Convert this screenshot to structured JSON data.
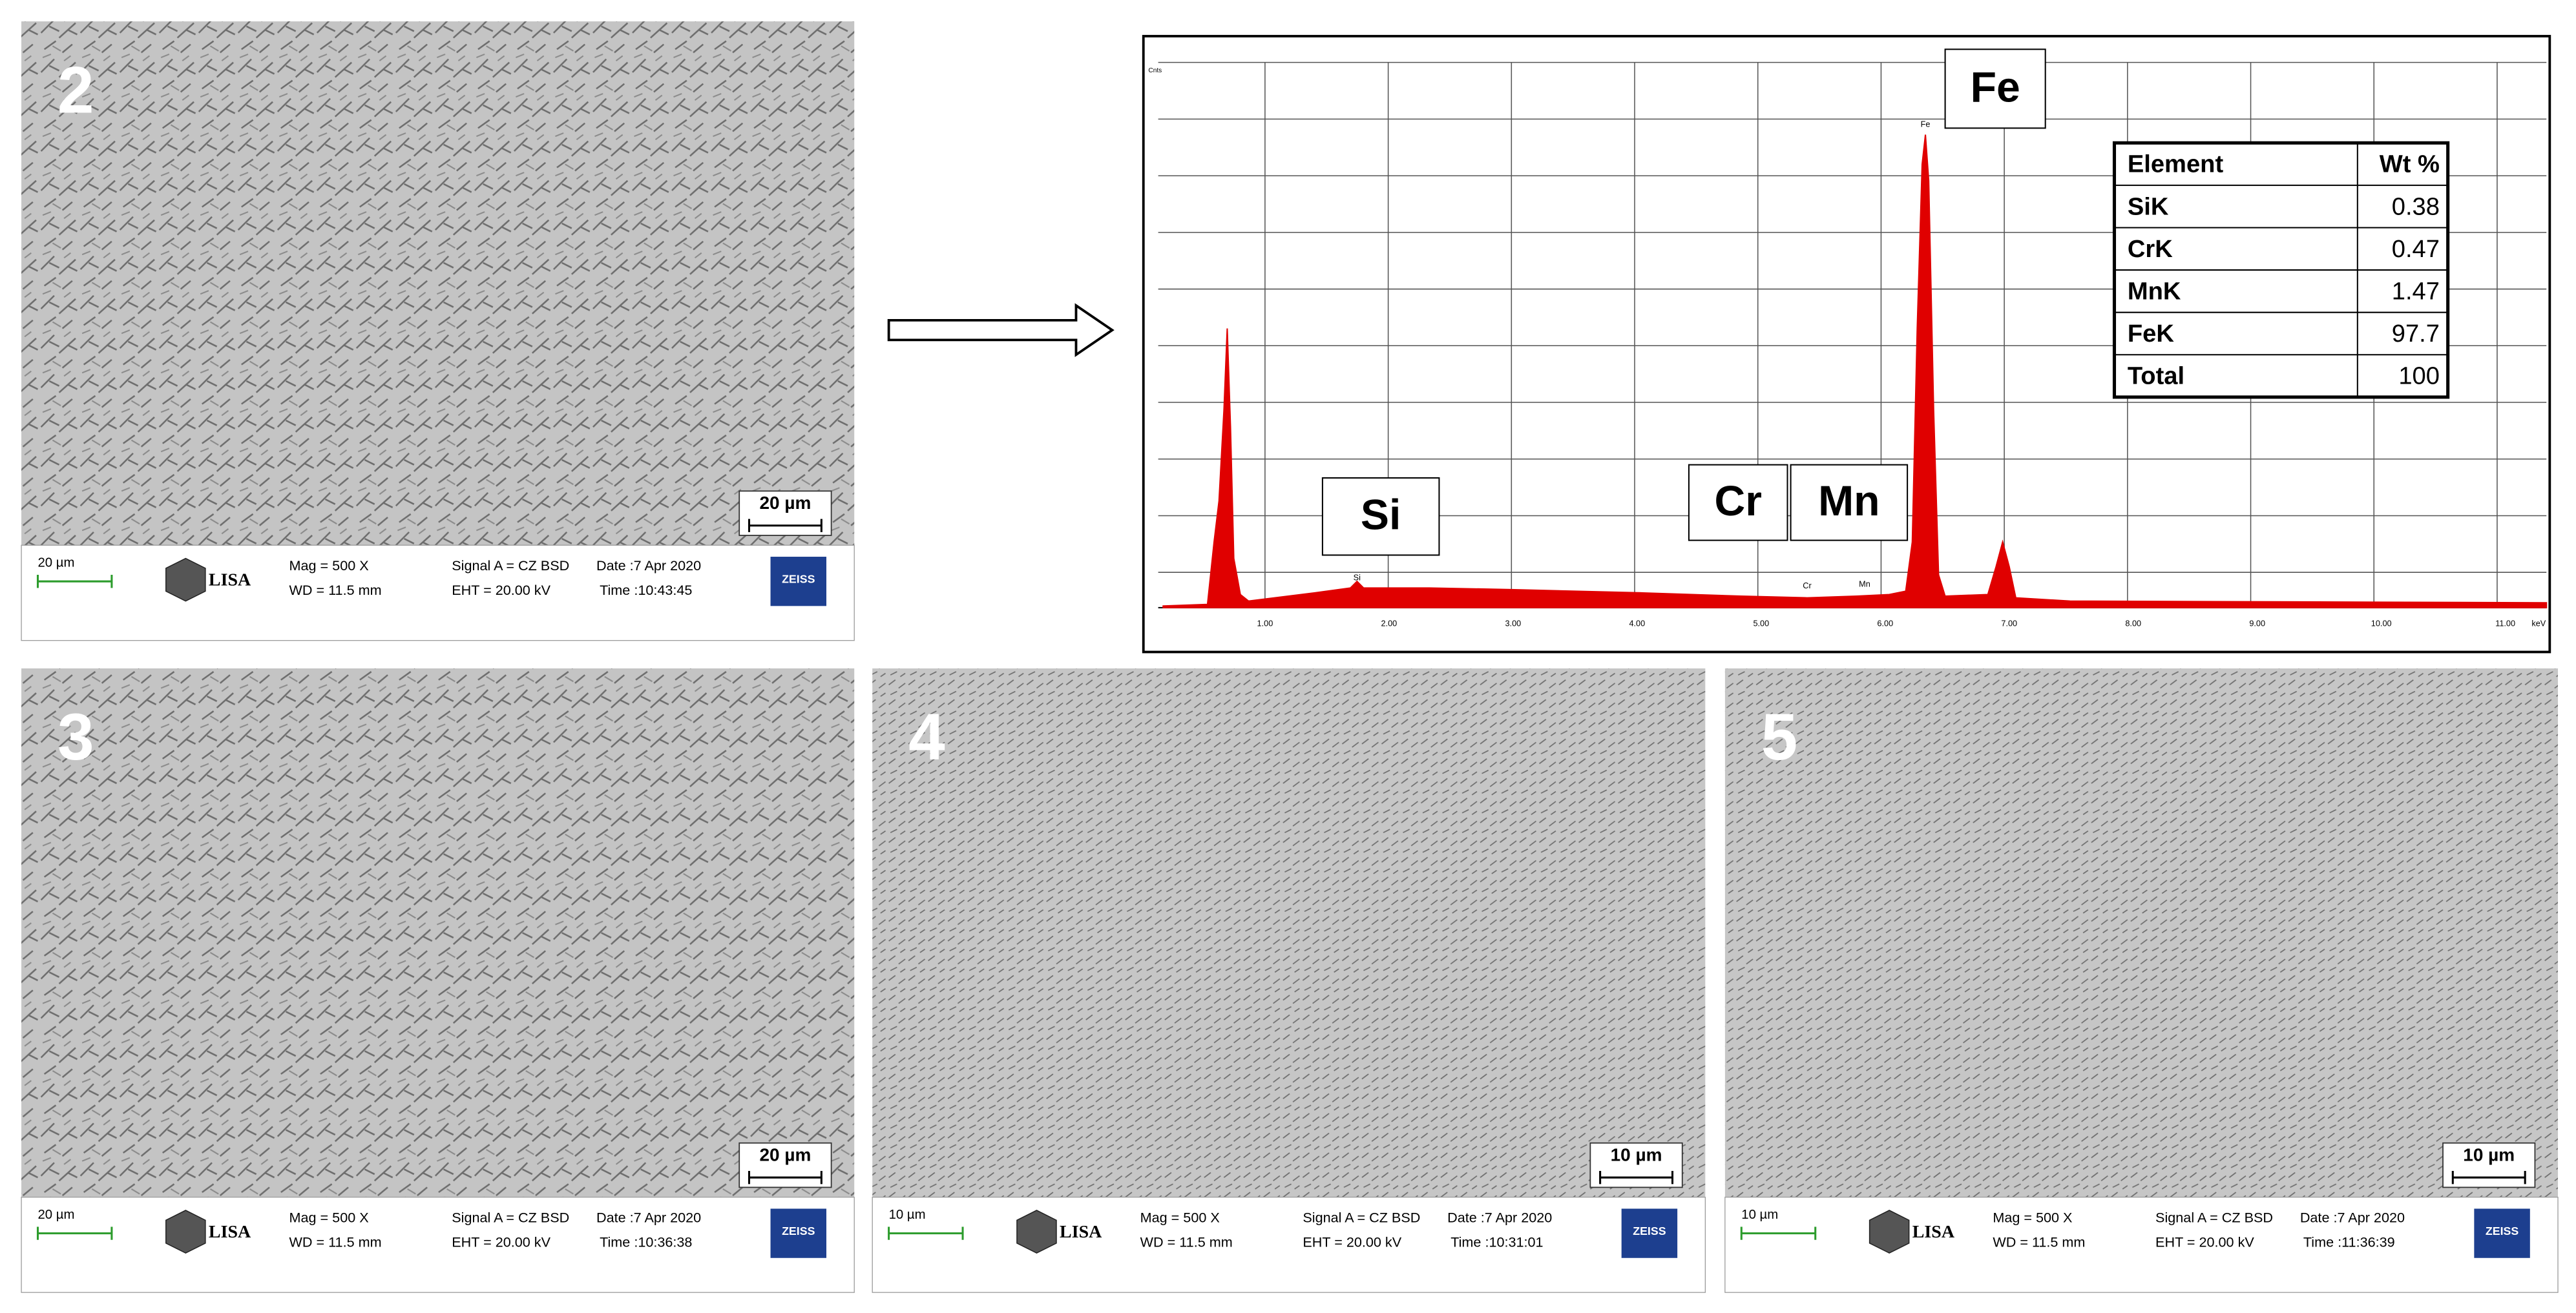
{
  "panels": [
    {
      "label": "2",
      "scale_bar": "20 µm",
      "info": {
        "scale": "20 µm",
        "logo": "LISA",
        "mag": "Mag =    500 X",
        "wd": "WD = 11.5 mm",
        "signal": "Signal A = CZ BSD",
        "eht": "EHT = 20.00 kV",
        "date": "Date :7 Apr 2020",
        "time": "Time :10:43:45",
        "brand": "ZEISS"
      }
    },
    {
      "label": "3",
      "scale_bar": "20 µm",
      "info": {
        "scale": "20 µm",
        "logo": "LISA",
        "mag": "Mag =    500 X",
        "wd": "WD = 11.5 mm",
        "signal": "Signal A = CZ BSD",
        "eht": "EHT = 20.00 kV",
        "date": "Date :7 Apr 2020",
        "time": "Time :10:36:38",
        "brand": "ZEISS"
      }
    },
    {
      "label": "4",
      "scale_bar": "10 µm",
      "info": {
        "scale": "10 µm",
        "logo": "LISA",
        "mag": "Mag =    500 X",
        "wd": "WD = 11.5 mm",
        "signal": "Signal A = CZ BSD",
        "eht": "EHT = 20.00 kV",
        "date": "Date :7 Apr 2020",
        "time": "Time :10:31:01",
        "brand": "ZEISS"
      }
    },
    {
      "label": "5",
      "scale_bar": "10 µm",
      "info": {
        "scale": "10 µm",
        "logo": "LISA",
        "mag": "Mag =    500 X",
        "wd": "WD = 11.5 mm",
        "signal": "Signal A = CZ BSD",
        "eht": "EHT = 20.00 kV",
        "date": "Date :7 Apr 2020",
        "time": "Time :11:36:39",
        "brand": "ZEISS"
      }
    }
  ],
  "spectrum": {
    "y_label": "Cnts",
    "x_unit": "keV",
    "x_ticks": [
      "1.00",
      "2.00",
      "3.00",
      "4.00",
      "5.00",
      "6.00",
      "7.00",
      "8.00",
      "9.00",
      "10.00",
      "11.00"
    ],
    "peak_tags": [
      "Si",
      "Cr",
      "Mn",
      "Fe"
    ],
    "peak_boxes": [
      "Fe",
      "Si",
      "Cr",
      "Mn"
    ],
    "table": {
      "header": [
        "Element",
        "Wt %"
      ],
      "rows": [
        [
          "SiK",
          "0.38"
        ],
        [
          "CrK",
          "0.47"
        ],
        [
          "MnK",
          "1.47"
        ],
        [
          "FeK",
          "97.7"
        ],
        [
          "Total",
          "100"
        ]
      ]
    }
  }
}
